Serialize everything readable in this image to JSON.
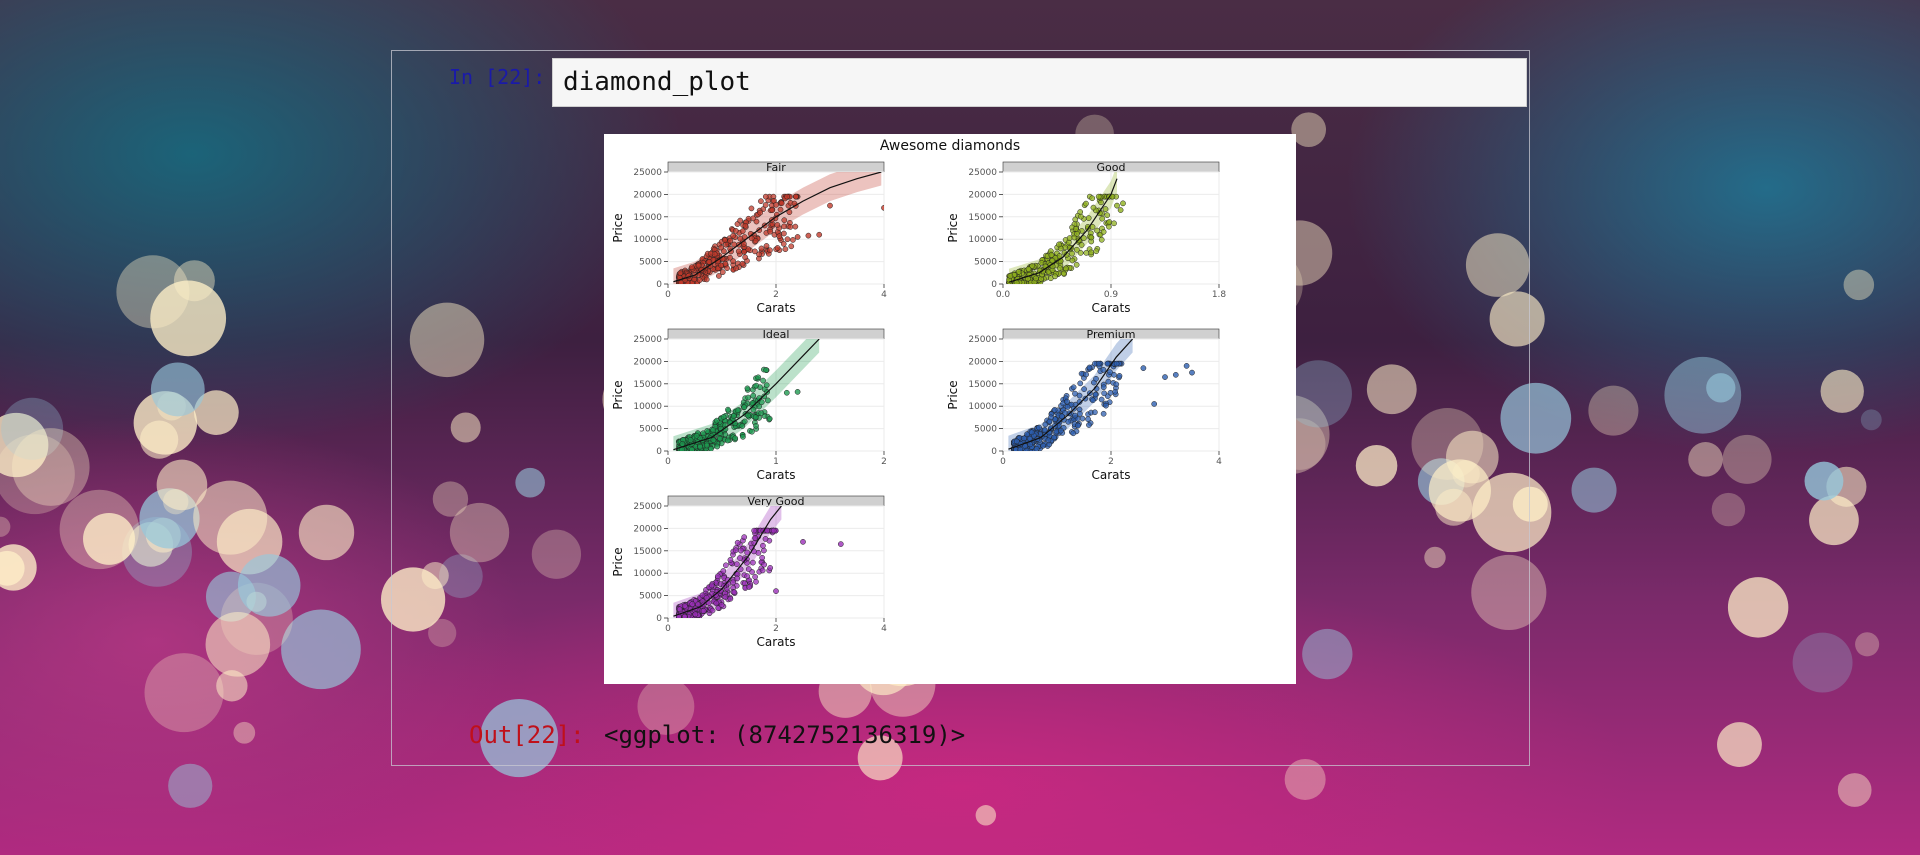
{
  "notebook": {
    "in_prompt": "In [22]:",
    "input_code": "diamond_plot",
    "out_prompt": "Out[22]:",
    "output_text": "<ggplot: (8742752136319)>"
  },
  "chart_data": {
    "type": "scatter",
    "title": "Awesome diamonds",
    "xlabel": "Carats",
    "ylabel": "Price",
    "facets": [
      {
        "name": "Fair",
        "color": "#c0392b",
        "xlim": [
          0,
          4
        ],
        "xticks": [
          0,
          2,
          4
        ],
        "ylim": [
          0,
          25000
        ],
        "yticks": [
          0,
          5000,
          10000,
          15000,
          20000,
          25000
        ],
        "trend": [
          [
            0.1,
            500
          ],
          [
            0.5,
            2000
          ],
          [
            1.0,
            6000
          ],
          [
            1.5,
            10500
          ],
          [
            2.0,
            15000
          ],
          [
            2.5,
            18500
          ],
          [
            3.0,
            21500
          ],
          [
            3.5,
            23500
          ],
          [
            3.95,
            25000
          ]
        ],
        "cluster": {
          "xmin": 0.2,
          "xmax": 2.4,
          "ymax": 19500
        },
        "outliers": [
          [
            2.4,
            10500
          ],
          [
            2.6,
            10800
          ],
          [
            2.8,
            11000
          ],
          [
            3.0,
            17500
          ],
          [
            4.0,
            17000
          ]
        ]
      },
      {
        "name": "Good",
        "color": "#8fb01e",
        "xlim": [
          0,
          1.8
        ],
        "xticks": [
          0.0,
          0.9,
          1.8
        ],
        "ylim": [
          0,
          25000
        ],
        "yticks": [
          0,
          5000,
          10000,
          15000,
          20000,
          25000
        ],
        "trend": [
          [
            0.05,
            400
          ],
          [
            0.3,
            2500
          ],
          [
            0.5,
            6000
          ],
          [
            0.7,
            12000
          ],
          [
            0.9,
            20000
          ],
          [
            0.95,
            23500
          ]
        ],
        "cluster": {
          "xmin": 0.05,
          "xmax": 0.95,
          "ymax": 19500
        },
        "outliers": [
          [
            0.95,
            17500
          ],
          [
            1.0,
            18000
          ],
          [
            0.98,
            16500
          ]
        ]
      },
      {
        "name": "Ideal",
        "color": "#1e9a50",
        "xlim": [
          0,
          2
        ],
        "xticks": [
          0,
          1,
          2
        ],
        "ylim": [
          0,
          25000
        ],
        "yticks": [
          0,
          5000,
          10000,
          15000,
          20000,
          25000
        ],
        "trend": [
          [
            0.05,
            300
          ],
          [
            0.4,
            3000
          ],
          [
            0.7,
            8000
          ],
          [
            1.0,
            15000
          ],
          [
            1.3,
            22500
          ],
          [
            1.4,
            25000
          ]
        ],
        "cluster": {
          "xmin": 0.1,
          "xmax": 0.95,
          "ymax": 19500
        },
        "outliers": [
          [
            1.1,
            13000
          ],
          [
            1.2,
            13200
          ]
        ]
      },
      {
        "name": "Premium",
        "color": "#2d5fb0",
        "xlim": [
          0,
          4
        ],
        "xticks": [
          0,
          2,
          4
        ],
        "ylim": [
          0,
          25000
        ],
        "yticks": [
          0,
          5000,
          10000,
          15000,
          20000,
          25000
        ],
        "trend": [
          [
            0.1,
            400
          ],
          [
            0.7,
            3000
          ],
          [
            1.2,
            8000
          ],
          [
            1.7,
            14000
          ],
          [
            2.1,
            21000
          ],
          [
            2.4,
            25000
          ]
        ],
        "cluster": {
          "xmin": 0.2,
          "xmax": 2.2,
          "ymax": 19500
        },
        "outliers": [
          [
            2.6,
            18500
          ],
          [
            3.0,
            16500
          ],
          [
            3.2,
            17000
          ],
          [
            3.4,
            19000
          ],
          [
            3.5,
            17500
          ],
          [
            2.8,
            10500
          ]
        ]
      },
      {
        "name": "Very Good",
        "color": "#9b30b8",
        "xlim": [
          0,
          4
        ],
        "xticks": [
          0,
          2,
          4
        ],
        "ylim": [
          0,
          25000
        ],
        "yticks": [
          0,
          5000,
          10000,
          15000,
          20000,
          25000
        ],
        "trend": [
          [
            0.1,
            400
          ],
          [
            0.6,
            2500
          ],
          [
            1.0,
            6500
          ],
          [
            1.5,
            14000
          ],
          [
            1.9,
            22000
          ],
          [
            2.1,
            25000
          ]
        ],
        "cluster": {
          "xmin": 0.2,
          "xmax": 2.0,
          "ymax": 19500
        },
        "outliers": [
          [
            2.0,
            6000
          ],
          [
            2.5,
            17000
          ],
          [
            3.2,
            16500
          ]
        ]
      }
    ],
    "grid": true,
    "legend": "none"
  }
}
